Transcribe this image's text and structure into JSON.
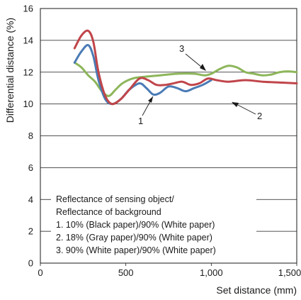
{
  "chart_data": {
    "type": "line",
    "title": "",
    "xlabel": "Set distance (mm)",
    "ylabel": "Differential distance (%)",
    "xlim": [
      0,
      1500
    ],
    "ylim": [
      0,
      16
    ],
    "x_ticks": [
      0,
      500,
      1000,
      1500
    ],
    "x_tick_labels": [
      "0",
      "500",
      "1,000",
      "1,500"
    ],
    "y_ticks": [
      0,
      2,
      4,
      6,
      8,
      10,
      12,
      14,
      16
    ],
    "y_tick_labels": [
      "0",
      "2",
      "4",
      "6",
      "8",
      "10",
      "12",
      "14",
      "16"
    ],
    "grid": "horizontal",
    "legend_title_lines": [
      "Reflectance of sensing object/",
      "Reflectance of background"
    ],
    "legend_position": "bottom-left",
    "series": [
      {
        "name": "1. 10% (Black paper)/90% (White paper)",
        "callout": "1",
        "color": "#4a7bb5",
        "x": [
          200,
          240,
          280,
          310,
          340,
          380,
          420,
          470,
          520,
          580,
          620,
          660,
          700,
          750,
          800,
          850,
          900,
          950,
          1000
        ],
        "y": [
          12.6,
          13.3,
          13.7,
          13.0,
          11.5,
          10.3,
          10.0,
          10.3,
          10.9,
          11.3,
          11.0,
          10.6,
          10.7,
          11.1,
          11.0,
          10.8,
          11.0,
          11.2,
          11.5
        ]
      },
      {
        "name": "2. 18% (Gray paper)/90% (White paper)",
        "callout": "2",
        "color": "#c0454a",
        "x": [
          200,
          240,
          280,
          310,
          340,
          380,
          420,
          470,
          520,
          580,
          630,
          680,
          730,
          780,
          830,
          880,
          930,
          980,
          1030,
          1100,
          1200,
          1300,
          1400,
          1500
        ],
        "y": [
          13.5,
          14.3,
          14.6,
          13.9,
          12.0,
          10.5,
          10.0,
          10.3,
          10.9,
          11.6,
          11.5,
          11.2,
          11.2,
          11.3,
          11.4,
          11.2,
          11.3,
          11.6,
          11.5,
          11.4,
          11.5,
          11.4,
          11.35,
          11.3
        ]
      },
      {
        "name": "3. 90% (White paper)/90% (White paper)",
        "callout": "3",
        "color": "#8db65a",
        "x": [
          200,
          240,
          280,
          320,
          360,
          400,
          440,
          480,
          540,
          600,
          700,
          800,
          900,
          960,
          1000,
          1050,
          1100,
          1150,
          1200,
          1250,
          1300,
          1350,
          1400,
          1450,
          1500
        ],
        "y": [
          12.6,
          12.3,
          11.8,
          11.4,
          10.8,
          10.5,
          10.9,
          11.3,
          11.6,
          11.7,
          11.8,
          11.9,
          11.9,
          11.8,
          11.9,
          12.2,
          12.4,
          12.3,
          12.0,
          11.9,
          11.8,
          11.85,
          12.0,
          12.05,
          12.0
        ]
      }
    ]
  }
}
